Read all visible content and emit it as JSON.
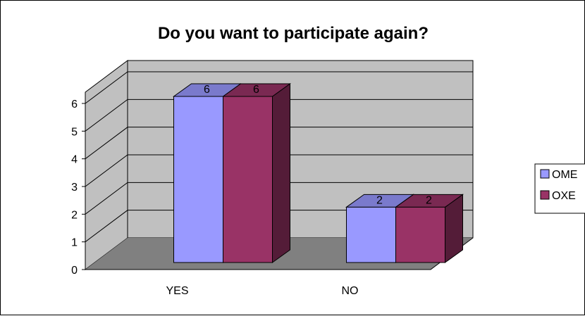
{
  "chart_data": {
    "type": "bar",
    "title": "Do you want to participate again?",
    "categories": [
      "YES",
      "NO"
    ],
    "series": [
      {
        "name": "OME",
        "values": [
          6,
          2
        ],
        "color": "#9999ff"
      },
      {
        "name": "OXE",
        "values": [
          6,
          2
        ],
        "color": "#993366"
      }
    ],
    "ylim": [
      0,
      6
    ],
    "yticks": [
      0,
      1,
      2,
      3,
      4,
      5,
      6
    ],
    "grid": true,
    "legend": "right",
    "three_d": true,
    "wall_color": "#c0c0c0",
    "floor_color": "#808080",
    "data_labels": true
  }
}
